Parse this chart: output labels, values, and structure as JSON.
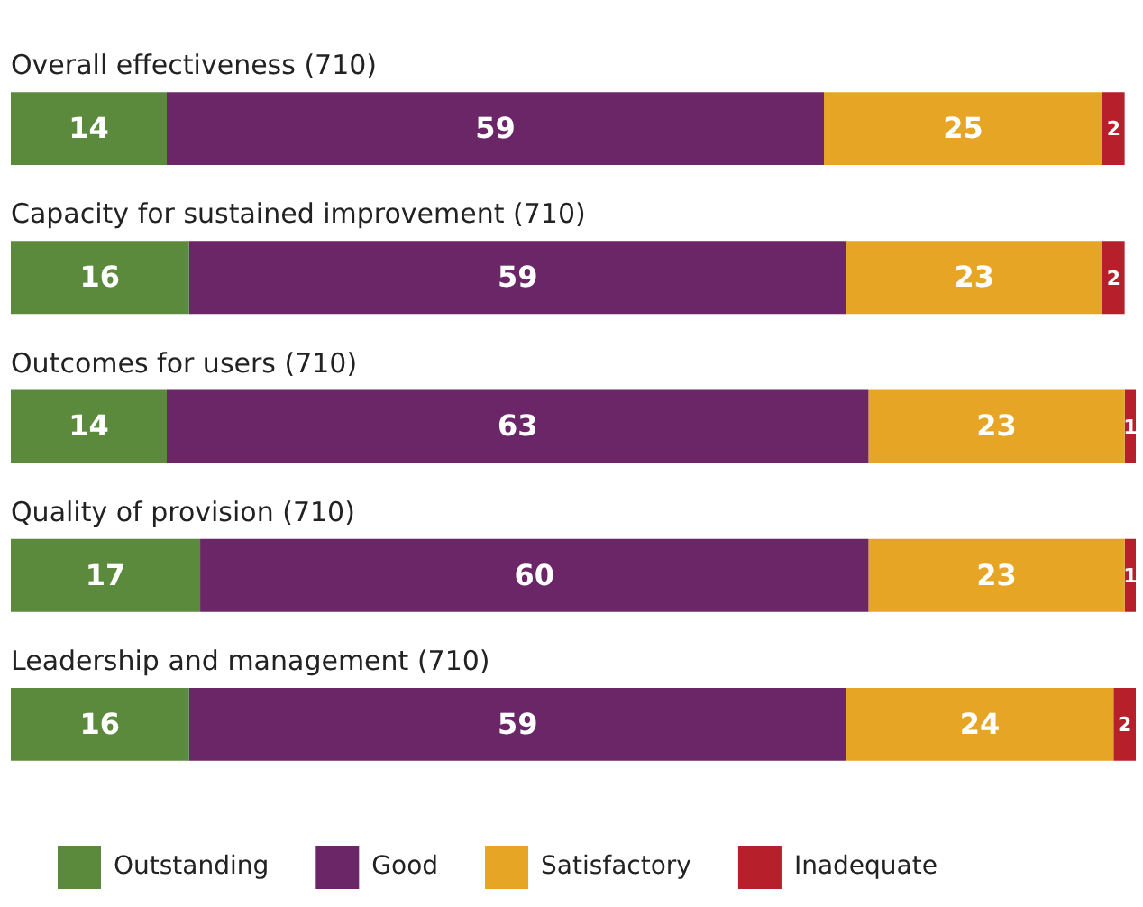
{
  "chart_data": {
    "type": "bar",
    "orientation": "horizontal",
    "stacked": true,
    "data_labels": true,
    "legend": "bottom",
    "categories": [
      "Overall effectiveness (710)",
      "Capacity for sustained improvement (710)",
      "Outcomes for users (710)",
      "Quality of provision (710)",
      "Leadership and management (710)"
    ],
    "series": [
      {
        "name": "Outstanding",
        "color": "#5b8a3c",
        "values": [
          14,
          16,
          14,
          17,
          16
        ]
      },
      {
        "name": "Good",
        "color": "#6b2668",
        "values": [
          59,
          59,
          63,
          60,
          59
        ]
      },
      {
        "name": "Satisfactory",
        "color": "#e6a524",
        "values": [
          25,
          23,
          23,
          23,
          24
        ]
      },
      {
        "name": "Inadequate",
        "color": "#b71f2a",
        "values": [
          2,
          2,
          1,
          1,
          2
        ]
      }
    ]
  }
}
